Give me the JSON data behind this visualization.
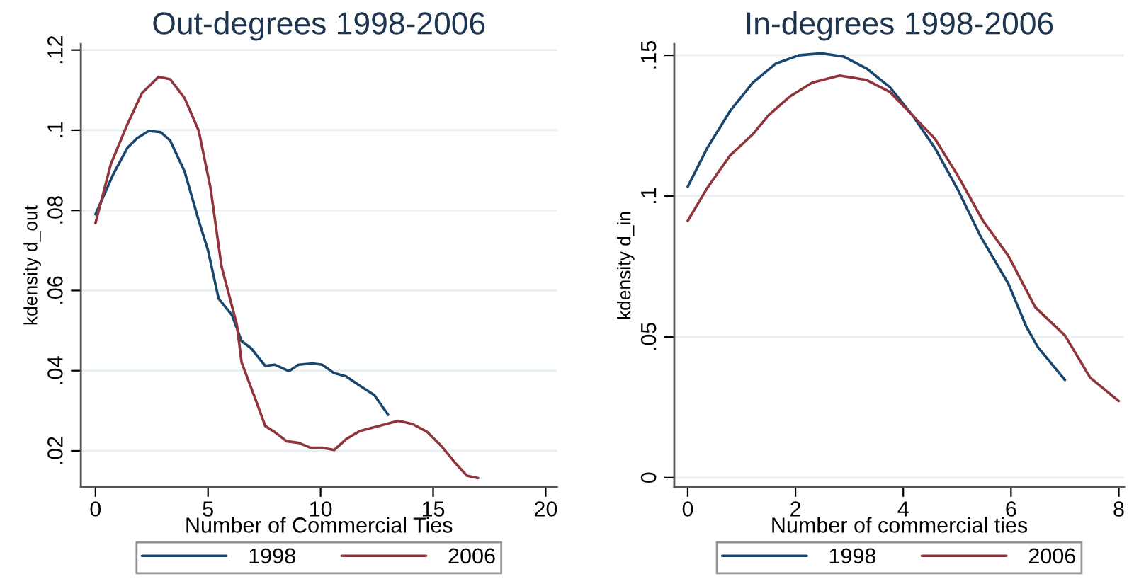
{
  "chart_data": [
    {
      "type": "line",
      "title": "Out-degrees 1998-2006",
      "xlabel": "Number of Commercial Ties",
      "ylabel": "kdensity d_out",
      "xlim": [
        -0.65,
        20.5
      ],
      "ylim": [
        0.011,
        0.1215
      ],
      "xticks": [
        0,
        5,
        10,
        15,
        20
      ],
      "yticks": [
        {
          "value": 0.02,
          "label": ".02"
        },
        {
          "value": 0.04,
          "label": ".04"
        },
        {
          "value": 0.06,
          "label": ".06"
        },
        {
          "value": 0.08,
          "label": ".08"
        },
        {
          "value": 0.1,
          "label": ".1"
        },
        {
          "value": 0.12,
          "label": ".12"
        }
      ],
      "grid": "y",
      "legend": "bottom",
      "line_style": "solid",
      "marker": "none",
      "series": [
        {
          "name": "1998",
          "color": "#1a476f",
          "x": [
            0,
            0.79,
            1.42,
            1.85,
            2.37,
            2.9,
            3.32,
            3.96,
            4.59,
            5.0,
            5.47,
            6.06,
            6.49,
            6.91,
            7.54,
            7.96,
            8.6,
            9.02,
            9.65,
            10.07,
            10.6,
            11.13,
            11.76,
            12.39,
            13.0
          ],
          "values": [
            0.079,
            0.089,
            0.0956,
            0.098,
            0.0998,
            0.0995,
            0.0974,
            0.0897,
            0.0774,
            0.07,
            0.058,
            0.0539,
            0.0474,
            0.0456,
            0.0412,
            0.0415,
            0.0399,
            0.0415,
            0.0418,
            0.0415,
            0.0394,
            0.0386,
            0.0362,
            0.0339,
            0.029
          ]
        },
        {
          "name": "2006",
          "color": "#90353b",
          "x": [
            0,
            0.68,
            1.42,
            2.06,
            2.8,
            3.32,
            3.96,
            4.59,
            5.11,
            5.6,
            6.28,
            6.49,
            7.12,
            7.54,
            7.96,
            8.49,
            9.02,
            9.54,
            10.07,
            10.6,
            11.13,
            11.76,
            12.6,
            13.45,
            14.08,
            14.72,
            15.35,
            15.98,
            16.5,
            17.0
          ],
          "values": [
            0.0768,
            0.0915,
            0.1015,
            0.1092,
            0.1133,
            0.1127,
            0.108,
            0.0998,
            0.0856,
            0.066,
            0.0515,
            0.0421,
            0.0327,
            0.0262,
            0.0247,
            0.0224,
            0.022,
            0.0208,
            0.0208,
            0.0202,
            0.0229,
            0.025,
            0.0262,
            0.0275,
            0.0267,
            0.0248,
            0.0213,
            0.017,
            0.0138,
            0.0132
          ]
        }
      ]
    },
    {
      "type": "line",
      "title": "In-degrees 1998-2006",
      "xlabel": "Number of commercial ties",
      "ylabel": "kdensity d_in",
      "xlim": [
        -0.25,
        8.1
      ],
      "ylim": [
        -0.0033,
        0.154
      ],
      "xticks": [
        0,
        2,
        4,
        6,
        8
      ],
      "yticks": [
        0,
        {
          "value": 0.05,
          "label": ".05"
        },
        {
          "value": 0.1,
          "label": ".1"
        },
        {
          "value": 0.15,
          "label": ".15"
        }
      ],
      "grid": "y",
      "legend": "bottom",
      "line_style": "solid",
      "marker": "none",
      "series": [
        {
          "name": "1998",
          "color": "#1a476f",
          "x": [
            0,
            0.36,
            0.79,
            1.21,
            1.63,
            2.06,
            2.48,
            2.9,
            3.32,
            3.75,
            4.17,
            4.59,
            5.02,
            5.44,
            5.95,
            6.28,
            6.5,
            7.0
          ],
          "values": [
            0.1033,
            0.117,
            0.1303,
            0.1403,
            0.147,
            0.15,
            0.1507,
            0.1495,
            0.1453,
            0.1387,
            0.1287,
            0.117,
            0.102,
            0.0855,
            0.0689,
            0.0538,
            0.0463,
            0.0347
          ]
        },
        {
          "name": "2006",
          "color": "#90353b",
          "x": [
            0,
            0.36,
            0.79,
            1.21,
            1.5,
            1.89,
            2.31,
            2.82,
            3.32,
            3.75,
            4.17,
            4.59,
            5.02,
            5.48,
            5.95,
            6.45,
            7.0,
            7.47,
            8.0
          ],
          "values": [
            0.0912,
            0.1028,
            0.1145,
            0.122,
            0.1287,
            0.1353,
            0.1403,
            0.1428,
            0.1412,
            0.137,
            0.1287,
            0.1203,
            0.107,
            0.0912,
            0.0788,
            0.0605,
            0.0505,
            0.0355,
            0.0272
          ]
        }
      ]
    }
  ]
}
